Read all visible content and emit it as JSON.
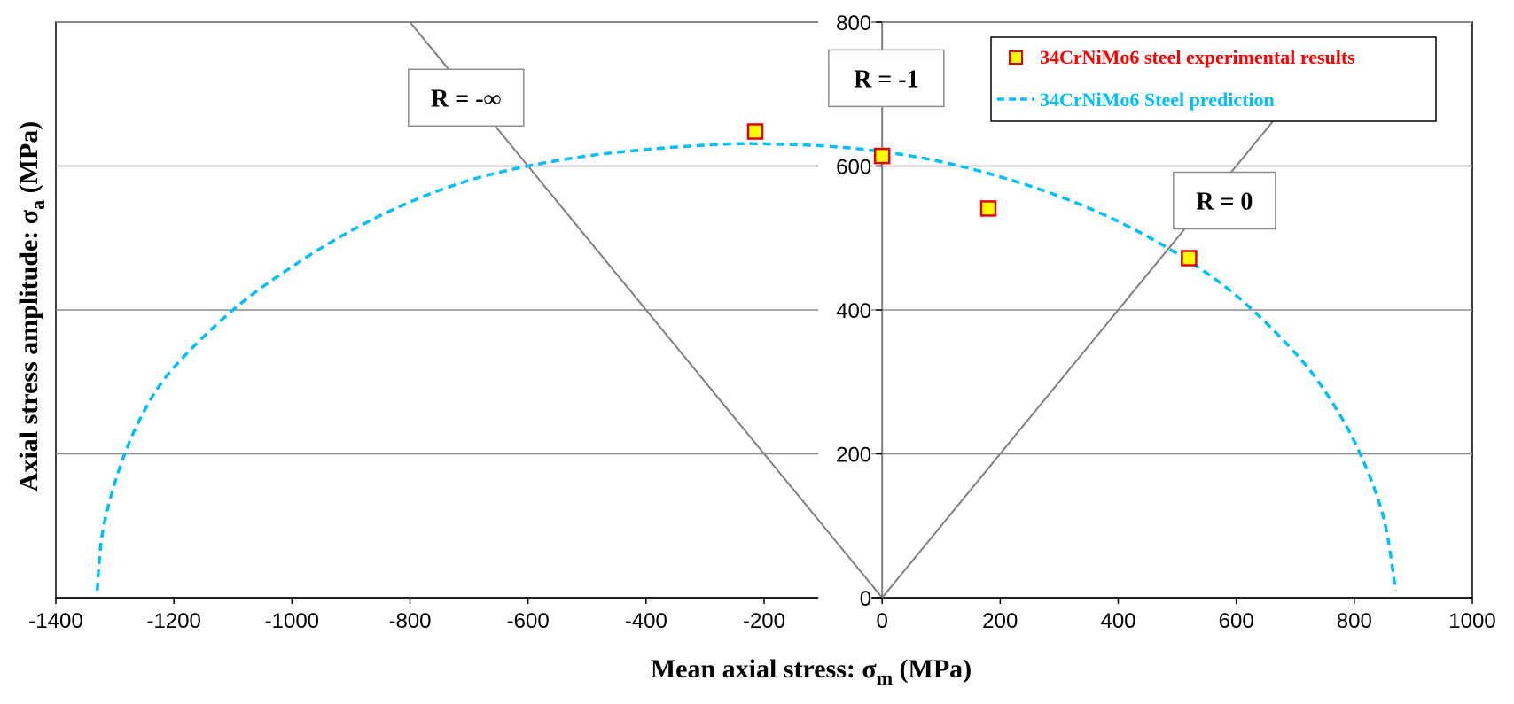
{
  "chart_data": {
    "type": "scatter",
    "xlabel": "Mean axial stress: σm (MPa)",
    "xlabel_main": "Mean axial stress: σ",
    "xlabel_sub": "m",
    "xlabel_unit": " (MPa)",
    "ylabel": "Axial stress amplitude: σa (MPa)",
    "ylabel_main": "Axial stress amplitude: σ",
    "ylabel_sub": "a",
    "ylabel_unit": " (MPa)",
    "xlim": [
      -1400,
      1000
    ],
    "ylim": [
      0,
      800
    ],
    "x_ticks": [
      -1400,
      -1200,
      -1000,
      -800,
      -600,
      -400,
      -200,
      0,
      200,
      400,
      600,
      800,
      1000
    ],
    "y_ticks": [
      0,
      200,
      400,
      600,
      800
    ],
    "x_tick_labels": [
      "-1400",
      "-1200",
      "-1000",
      "-800",
      "-600",
      "-400",
      "-200",
      "0",
      "200",
      "400",
      "600",
      "800",
      "1000"
    ],
    "y_tick_labels": [
      "0",
      "200",
      "400",
      "600",
      "800"
    ],
    "grid": "horizontal",
    "legend_position": "top-right",
    "series": [
      {
        "name": "34CrNiMo6 steel experimental results",
        "kind": "markers",
        "marker_fill": "#ffff00",
        "marker_edge": "#e00000",
        "text_color": "#ff0000",
        "points": [
          {
            "x": -215,
            "y": 648
          },
          {
            "x": 0,
            "y": 614
          },
          {
            "x": 180,
            "y": 541
          },
          {
            "x": 520,
            "y": 472
          }
        ]
      },
      {
        "name": "34CrNiMo6 Steel prediction",
        "kind": "dashed-line",
        "color": "#00bfff",
        "text_color": "#00bfff",
        "points": [
          {
            "x": -1330,
            "y": 10
          },
          {
            "x": -1320,
            "y": 95
          },
          {
            "x": -1290,
            "y": 185
          },
          {
            "x": -1250,
            "y": 260
          },
          {
            "x": -1200,
            "y": 320
          },
          {
            "x": -1100,
            "y": 400
          },
          {
            "x": -1000,
            "y": 460
          },
          {
            "x": -900,
            "y": 510
          },
          {
            "x": -800,
            "y": 550
          },
          {
            "x": -700,
            "y": 580
          },
          {
            "x": -600,
            "y": 600
          },
          {
            "x": -500,
            "y": 614
          },
          {
            "x": -400,
            "y": 623
          },
          {
            "x": -300,
            "y": 629
          },
          {
            "x": -220,
            "y": 631
          },
          {
            "x": -100,
            "y": 628
          },
          {
            "x": 0,
            "y": 620
          },
          {
            "x": 100,
            "y": 606
          },
          {
            "x": 200,
            "y": 585
          },
          {
            "x": 300,
            "y": 558
          },
          {
            "x": 400,
            "y": 523
          },
          {
            "x": 500,
            "y": 478
          },
          {
            "x": 600,
            "y": 420
          },
          {
            "x": 700,
            "y": 340
          },
          {
            "x": 760,
            "y": 275
          },
          {
            "x": 810,
            "y": 200
          },
          {
            "x": 850,
            "y": 110
          },
          {
            "x": 870,
            "y": 10
          }
        ]
      }
    ],
    "reference_lines": [
      {
        "name": "R = -∞",
        "from": {
          "x": 0,
          "y": 0
        },
        "to": {
          "x": -800,
          "y": 800
        }
      },
      {
        "name": "R = -1",
        "from": {
          "x": 0,
          "y": 0
        },
        "to": {
          "x": 0,
          "y": 800
        }
      },
      {
        "name": "R = 0",
        "from": {
          "x": 0,
          "y": 0
        },
        "to": {
          "x": 666,
          "y": 666
        }
      }
    ],
    "annotations": [
      {
        "text": "R = -∞",
        "x": -705,
        "y": 695
      },
      {
        "text": "R = -1",
        "x": 7,
        "y": 722
      },
      {
        "text": "R = 0",
        "x": 580,
        "y": 552
      }
    ]
  },
  "colors": {
    "grid": "#8c8c8c",
    "ref_line": "#7f7f7f",
    "frame": "#000000"
  }
}
